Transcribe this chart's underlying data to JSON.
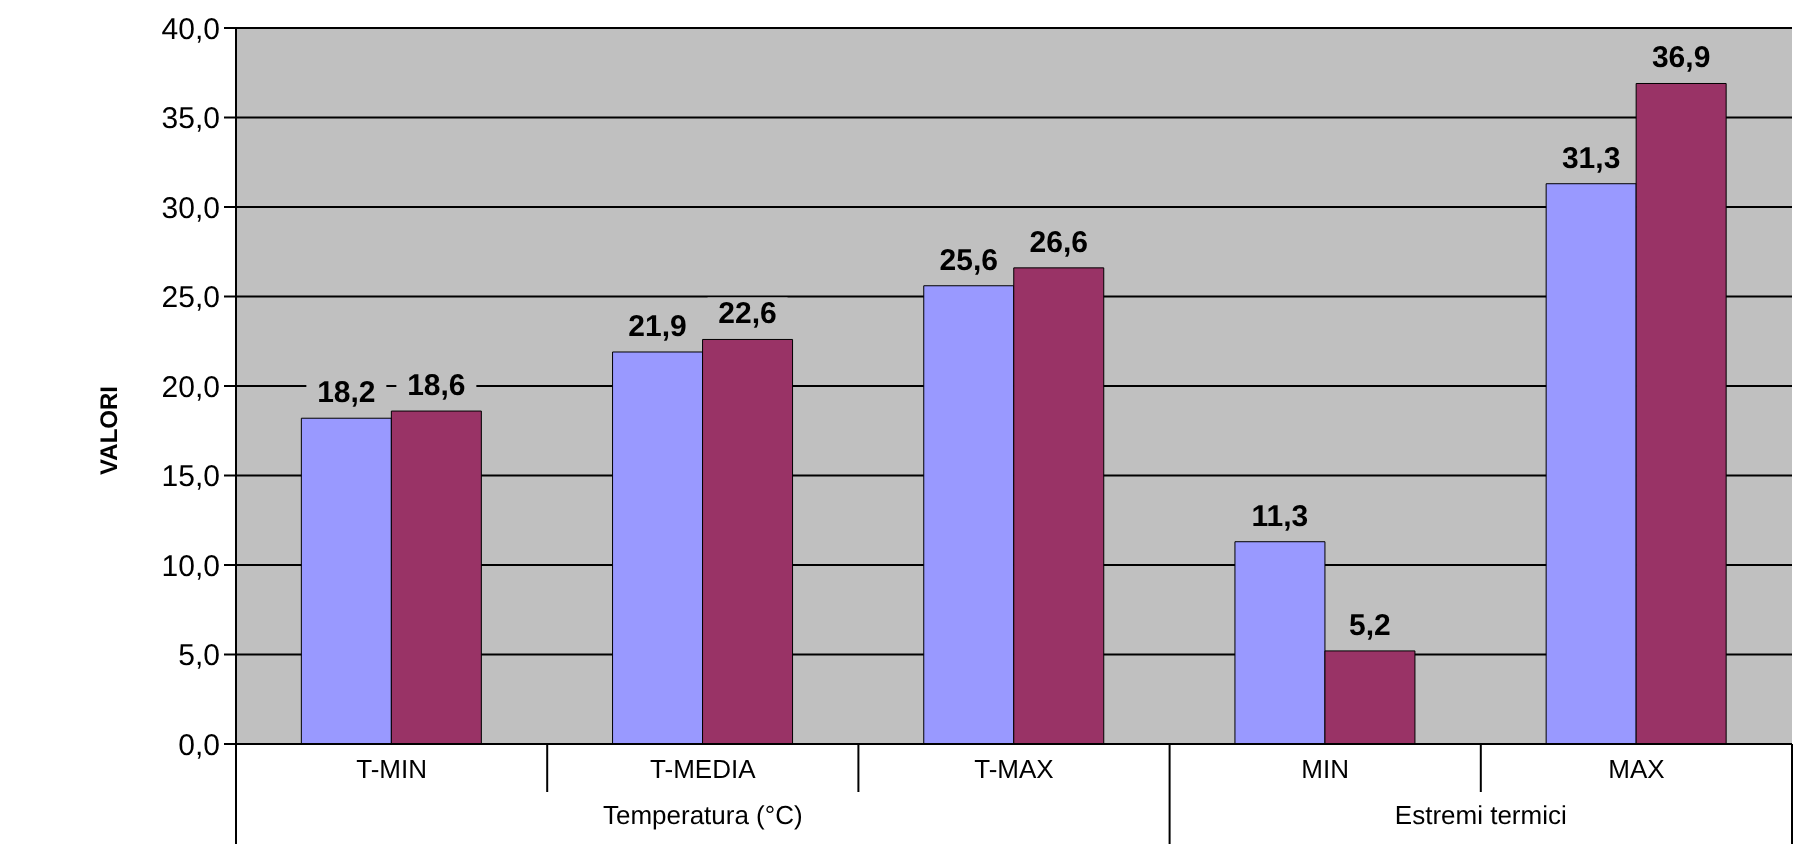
{
  "chart_data": {
    "type": "bar",
    "ylabel": "VALORI",
    "categories": [
      "T-MIN",
      "T-MEDIA",
      "T-MAX",
      "MIN",
      "MAX"
    ],
    "series": [
      {
        "color": "#9999ff",
        "values": [
          18.2,
          21.9,
          25.6,
          11.3,
          31.3
        ],
        "value_labels": [
          "18,2",
          "21,9",
          "25,6",
          "11,3",
          "31,3"
        ]
      },
      {
        "color": "#993366",
        "values": [
          18.6,
          22.6,
          26.6,
          5.2,
          36.9
        ],
        "value_labels": [
          "18,6",
          "22,6",
          "26,6",
          "5,2",
          "36,9"
        ]
      }
    ],
    "ylim": [
      0,
      40
    ],
    "yticks": [
      {
        "value": 0,
        "label": "0,0"
      },
      {
        "value": 5,
        "label": "5,0"
      },
      {
        "value": 10,
        "label": "10,0"
      },
      {
        "value": 15,
        "label": "15,0"
      },
      {
        "value": 20,
        "label": "20,0"
      },
      {
        "value": 25,
        "label": "25,0"
      },
      {
        "value": 30,
        "label": "30,0"
      },
      {
        "value": 35,
        "label": "35,0"
      },
      {
        "value": 40,
        "label": "40,0"
      }
    ],
    "grid": "y",
    "legend": false,
    "annotations": [
      "Temperatura (°C)",
      "Estremi termici"
    ]
  }
}
